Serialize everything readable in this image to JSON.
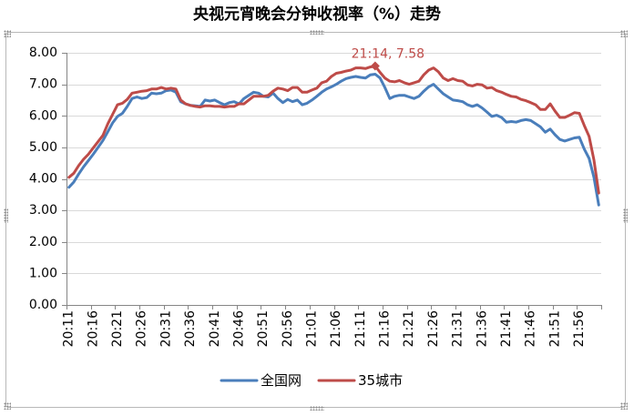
{
  "chart_data": {
    "type": "line",
    "title": "央视元宵晚会分钟收视率（%）走势",
    "x": [
      "20:11",
      "20:12",
      "20:13",
      "20:14",
      "20:15",
      "20:16",
      "20:17",
      "20:18",
      "20:19",
      "20:20",
      "20:21",
      "20:22",
      "20:23",
      "20:24",
      "20:25",
      "20:26",
      "20:27",
      "20:28",
      "20:29",
      "20:30",
      "20:31",
      "20:32",
      "20:33",
      "20:34",
      "20:35",
      "20:36",
      "20:37",
      "20:38",
      "20:39",
      "20:40",
      "20:41",
      "20:42",
      "20:43",
      "20:44",
      "20:45",
      "20:46",
      "20:47",
      "20:48",
      "20:49",
      "20:50",
      "20:51",
      "20:52",
      "20:53",
      "20:54",
      "20:55",
      "20:56",
      "20:57",
      "20:58",
      "20:59",
      "21:00",
      "21:01",
      "21:02",
      "21:03",
      "21:04",
      "21:05",
      "21:06",
      "21:07",
      "21:08",
      "21:09",
      "21:10",
      "21:11",
      "21:12",
      "21:13",
      "21:14",
      "21:15",
      "21:16",
      "21:17",
      "21:18",
      "21:19",
      "21:20",
      "21:21",
      "21:22",
      "21:23",
      "21:24",
      "21:25",
      "21:26",
      "21:27",
      "21:28",
      "21:29",
      "21:30",
      "21:31",
      "21:32",
      "21:33",
      "21:34",
      "21:35",
      "21:36",
      "21:37",
      "21:38",
      "21:39",
      "21:40",
      "21:41",
      "21:42",
      "21:43",
      "21:44",
      "21:45",
      "21:46",
      "21:47",
      "21:48",
      "21:49",
      "21:50",
      "21:51",
      "21:52",
      "21:53",
      "21:54",
      "21:55",
      "21:56",
      "21:57",
      "21:58",
      "21:59",
      "22:00"
    ],
    "series": [
      {
        "name": "全国网",
        "color": "#4A7EBB",
        "values": [
          3.73,
          3.9,
          4.15,
          4.38,
          4.58,
          4.78,
          5.0,
          5.22,
          5.5,
          5.78,
          5.98,
          6.08,
          6.3,
          6.55,
          6.6,
          6.55,
          6.58,
          6.72,
          6.7,
          6.72,
          6.8,
          6.82,
          6.75,
          6.45,
          6.38,
          6.33,
          6.32,
          6.3,
          6.5,
          6.47,
          6.5,
          6.42,
          6.35,
          6.42,
          6.45,
          6.38,
          6.55,
          6.65,
          6.75,
          6.72,
          6.62,
          6.6,
          6.72,
          6.55,
          6.42,
          6.52,
          6.45,
          6.5,
          6.35,
          6.4,
          6.5,
          6.62,
          6.75,
          6.85,
          6.92,
          7.0,
          7.1,
          7.18,
          7.22,
          7.25,
          7.22,
          7.2,
          7.3,
          7.32,
          7.2,
          6.9,
          6.55,
          6.62,
          6.65,
          6.65,
          6.6,
          6.55,
          6.62,
          6.78,
          6.92,
          7.0,
          6.85,
          6.7,
          6.6,
          6.5,
          6.48,
          6.45,
          6.35,
          6.3,
          6.35,
          6.25,
          6.12,
          5.98,
          6.02,
          5.95,
          5.8,
          5.82,
          5.8,
          5.85,
          5.88,
          5.85,
          5.75,
          5.65,
          5.48,
          5.58,
          5.4,
          5.25,
          5.2,
          5.25,
          5.3,
          5.32,
          4.95,
          4.65,
          4.05,
          3.17
        ]
      },
      {
        "name": "35城市",
        "color": "#BE4B48",
        "values": [
          4.05,
          4.18,
          4.42,
          4.62,
          4.78,
          4.98,
          5.18,
          5.38,
          5.75,
          6.05,
          6.35,
          6.4,
          6.52,
          6.72,
          6.75,
          6.78,
          6.8,
          6.85,
          6.85,
          6.9,
          6.85,
          6.88,
          6.85,
          6.5,
          6.38,
          6.33,
          6.3,
          6.28,
          6.32,
          6.32,
          6.3,
          6.3,
          6.28,
          6.3,
          6.3,
          6.38,
          6.38,
          6.5,
          6.62,
          6.62,
          6.62,
          6.65,
          6.78,
          6.88,
          6.85,
          6.8,
          6.9,
          6.9,
          6.75,
          6.75,
          6.82,
          6.88,
          7.05,
          7.1,
          7.25,
          7.35,
          7.38,
          7.42,
          7.45,
          7.52,
          7.52,
          7.5,
          7.55,
          7.58,
          7.38,
          7.2,
          7.1,
          7.08,
          7.12,
          7.05,
          7.0,
          7.05,
          7.1,
          7.3,
          7.45,
          7.52,
          7.4,
          7.2,
          7.12,
          7.18,
          7.12,
          7.1,
          6.98,
          6.95,
          7.0,
          6.98,
          6.88,
          6.9,
          6.8,
          6.75,
          6.68,
          6.62,
          6.6,
          6.52,
          6.48,
          6.42,
          6.35,
          6.2,
          6.2,
          6.38,
          6.15,
          5.95,
          5.95,
          6.02,
          6.1,
          6.08,
          5.7,
          5.35,
          4.6,
          3.55
        ]
      }
    ],
    "ylim": [
      0,
      8
    ],
    "y_tick_labels": [
      "0.00",
      "1.00",
      "2.00",
      "3.00",
      "4.00",
      "5.00",
      "6.00",
      "7.00",
      "8.00"
    ],
    "grid": {
      "horizontal": true,
      "vertical": false
    },
    "legend": "bottom",
    "annotations": [
      {
        "x": "21:14",
        "y": 7.58,
        "label": "21:14, 7.58",
        "color": "#BE4B48"
      }
    ]
  }
}
